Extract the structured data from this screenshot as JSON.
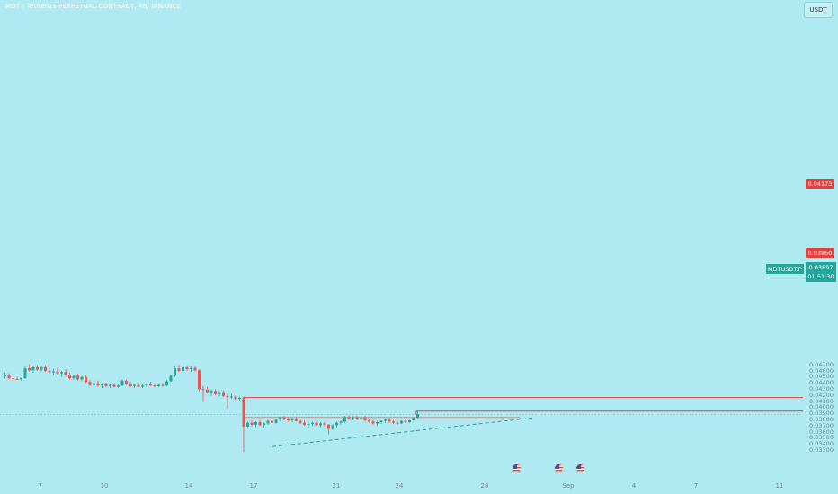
{
  "header": {
    "title": "MDT / TetherUS PERPETUAL CONTRACT, 4h, BINANCE"
  },
  "currency_button": "USDT",
  "price_labels": {
    "upper": "0.04173",
    "mid": "0.03950"
  },
  "current": {
    "symbol": "MDTUSDT.P",
    "price": "0.03897",
    "countdown": "01:51:30"
  },
  "colors": {
    "background": "#afe9f1",
    "up": "#26a69a",
    "down": "#ef5350",
    "resistance_line": "#e0433f",
    "zone": "#c8c8c8",
    "trendline": "#2aa198"
  },
  "events": [
    "us-flag-icon",
    "us-flag-icon",
    "us-flag-icon"
  ],
  "chart_data": {
    "type": "candlestick",
    "title": "MDT / TetherUS PERPETUAL CONTRACT, 4h, BINANCE",
    "ylim": [
      0.0328,
      0.0472
    ],
    "yticks": [
      "0.04700",
      "0.04600",
      "0.04500",
      "0.04400",
      "0.04300",
      "0.04200",
      "0.04100",
      "0.04000",
      "0.03900",
      "0.03800",
      "0.03700",
      "0.03600",
      "0.03500",
      "0.03400",
      "0.03300"
    ],
    "xticks": [
      "7",
      "10",
      "14",
      "17",
      "21",
      "24",
      "28",
      "Sep",
      "4",
      "7",
      "11"
    ],
    "candles": [
      [
        0.0452,
        0.0458,
        0.0449,
        0.0455
      ],
      [
        0.0455,
        0.0457,
        0.0447,
        0.0449
      ],
      [
        0.0449,
        0.0452,
        0.0446,
        0.0448
      ],
      [
        0.0448,
        0.0451,
        0.0446,
        0.0447
      ],
      [
        0.0447,
        0.045,
        0.0445,
        0.0449
      ],
      [
        0.0449,
        0.0468,
        0.0448,
        0.0465
      ],
      [
        0.0465,
        0.0472,
        0.046,
        0.0462
      ],
      [
        0.0462,
        0.0469,
        0.0458,
        0.0467
      ],
      [
        0.0467,
        0.047,
        0.0461,
        0.0463
      ],
      [
        0.0463,
        0.0469,
        0.046,
        0.0467
      ],
      [
        0.0467,
        0.047,
        0.0459,
        0.0461
      ],
      [
        0.0461,
        0.0466,
        0.0457,
        0.0459
      ],
      [
        0.0459,
        0.0464,
        0.0454,
        0.046
      ],
      [
        0.046,
        0.0466,
        0.0455,
        0.0457
      ],
      [
        0.0457,
        0.0461,
        0.0451,
        0.0459
      ],
      [
        0.0459,
        0.0463,
        0.0453,
        0.0455
      ],
      [
        0.0455,
        0.0458,
        0.0447,
        0.0449
      ],
      [
        0.0449,
        0.0455,
        0.0446,
        0.0453
      ],
      [
        0.0453,
        0.0456,
        0.0445,
        0.0447
      ],
      [
        0.0447,
        0.0453,
        0.0444,
        0.0451
      ],
      [
        0.0451,
        0.0454,
        0.0441,
        0.0443
      ],
      [
        0.0443,
        0.0446,
        0.0436,
        0.0438
      ],
      [
        0.0438,
        0.0443,
        0.0434,
        0.0441
      ],
      [
        0.0441,
        0.0445,
        0.0435,
        0.0437
      ],
      [
        0.0437,
        0.0441,
        0.0433,
        0.0439
      ],
      [
        0.0439,
        0.0442,
        0.0434,
        0.0436
      ],
      [
        0.0436,
        0.044,
        0.0433,
        0.0438
      ],
      [
        0.0438,
        0.0441,
        0.0434,
        0.0435
      ],
      [
        0.0435,
        0.0439,
        0.0433,
        0.0437
      ],
      [
        0.0437,
        0.0447,
        0.0436,
        0.0445
      ],
      [
        0.0445,
        0.0447,
        0.0437,
        0.0439
      ],
      [
        0.0439,
        0.0443,
        0.0434,
        0.0436
      ],
      [
        0.0436,
        0.044,
        0.0433,
        0.0438
      ],
      [
        0.0438,
        0.0441,
        0.0434,
        0.0435
      ],
      [
        0.0435,
        0.044,
        0.0433,
        0.0437
      ],
      [
        0.0437,
        0.0441,
        0.0435,
        0.044
      ],
      [
        0.044,
        0.0443,
        0.0436,
        0.0437
      ],
      [
        0.0437,
        0.0441,
        0.0434,
        0.0436
      ],
      [
        0.0436,
        0.044,
        0.0434,
        0.0438
      ],
      [
        0.0438,
        0.0441,
        0.0435,
        0.0437
      ],
      [
        0.0437,
        0.0446,
        0.0436,
        0.0444
      ],
      [
        0.0444,
        0.0455,
        0.0443,
        0.0453
      ],
      [
        0.0453,
        0.0468,
        0.0451,
        0.0465
      ],
      [
        0.0465,
        0.0471,
        0.0459,
        0.0461
      ],
      [
        0.0461,
        0.0469,
        0.0458,
        0.0467
      ],
      [
        0.0467,
        0.0469,
        0.0461,
        0.0464
      ],
      [
        0.0464,
        0.0468,
        0.0459,
        0.0466
      ],
      [
        0.0466,
        0.0469,
        0.046,
        0.0462
      ],
      [
        0.0462,
        0.0463,
        0.0428,
        0.0431
      ],
      [
        0.0431,
        0.0436,
        0.041,
        0.043
      ],
      [
        0.043,
        0.0435,
        0.0424,
        0.0426
      ],
      [
        0.0426,
        0.0431,
        0.042,
        0.0428
      ],
      [
        0.0428,
        0.0431,
        0.0421,
        0.0423
      ],
      [
        0.0423,
        0.0428,
        0.0419,
        0.0426
      ],
      [
        0.0426,
        0.0429,
        0.0418,
        0.042
      ],
      [
        0.042,
        0.0424,
        0.04,
        0.0418
      ],
      [
        0.0418,
        0.0423,
        0.0415,
        0.0419
      ],
      [
        0.0419,
        0.0421,
        0.0413,
        0.0415
      ],
      [
        0.0415,
        0.0419,
        0.0411,
        0.0417
      ],
      [
        0.0417,
        0.0419,
        0.0328,
        0.037
      ],
      [
        0.037,
        0.0378,
        0.0366,
        0.0376
      ],
      [
        0.0376,
        0.038,
        0.037,
        0.0373
      ],
      [
        0.0373,
        0.0379,
        0.0369,
        0.0377
      ],
      [
        0.0377,
        0.038,
        0.0371,
        0.0372
      ],
      [
        0.0372,
        0.0377,
        0.0368,
        0.0375
      ],
      [
        0.0375,
        0.0381,
        0.0373,
        0.0379
      ],
      [
        0.0379,
        0.0382,
        0.0374,
        0.0376
      ],
      [
        0.0376,
        0.0383,
        0.0374,
        0.0381
      ],
      [
        0.0381,
        0.0386,
        0.0379,
        0.0385
      ],
      [
        0.0385,
        0.0387,
        0.038,
        0.0382
      ],
      [
        0.0382,
        0.0385,
        0.0378,
        0.038
      ],
      [
        0.038,
        0.0384,
        0.0377,
        0.0382
      ],
      [
        0.0382,
        0.0385,
        0.0378,
        0.0379
      ],
      [
        0.0379,
        0.0382,
        0.0374,
        0.0376
      ],
      [
        0.0376,
        0.038,
        0.0371,
        0.0373
      ],
      [
        0.0373,
        0.0378,
        0.0367,
        0.0374
      ],
      [
        0.0374,
        0.0378,
        0.0371,
        0.0376
      ],
      [
        0.0376,
        0.0379,
        0.0371,
        0.0372
      ],
      [
        0.0372,
        0.0377,
        0.0369,
        0.0375
      ],
      [
        0.0375,
        0.0378,
        0.037,
        0.0373
      ],
      [
        0.0373,
        0.0374,
        0.0357,
        0.0366
      ],
      [
        0.0366,
        0.0374,
        0.0364,
        0.0372
      ],
      [
        0.0372,
        0.0378,
        0.0369,
        0.0376
      ],
      [
        0.0376,
        0.038,
        0.0373,
        0.0378
      ],
      [
        0.0378,
        0.0387,
        0.0376,
        0.0385
      ],
      [
        0.0385,
        0.0388,
        0.038,
        0.0382
      ],
      [
        0.0382,
        0.0387,
        0.038,
        0.0385
      ],
      [
        0.0385,
        0.0388,
        0.0381,
        0.0383
      ],
      [
        0.0383,
        0.0386,
        0.038,
        0.0385
      ],
      [
        0.0385,
        0.0387,
        0.0378,
        0.038
      ],
      [
        0.038,
        0.0383,
        0.0376,
        0.0378
      ],
      [
        0.0378,
        0.0381,
        0.0373,
        0.0375
      ],
      [
        0.0375,
        0.0379,
        0.0371,
        0.0377
      ],
      [
        0.0377,
        0.0381,
        0.0374,
        0.0379
      ],
      [
        0.0379,
        0.0383,
        0.0376,
        0.0381
      ],
      [
        0.0381,
        0.0384,
        0.0376,
        0.0378
      ],
      [
        0.0378,
        0.0381,
        0.0374,
        0.0376
      ],
      [
        0.0376,
        0.0379,
        0.0373,
        0.0375
      ],
      [
        0.0375,
        0.038,
        0.0374,
        0.0379
      ],
      [
        0.0379,
        0.0382,
        0.0375,
        0.0377
      ],
      [
        0.0377,
        0.0381,
        0.0376,
        0.038
      ],
      [
        0.038,
        0.0386,
        0.0379,
        0.0384
      ],
      [
        0.0384,
        0.0397,
        0.0382,
        0.039
      ]
    ],
    "levels": [
      {
        "name": "resistance-upper",
        "price": 0.04173,
        "label": "0.04173"
      },
      {
        "name": "resistance-mid",
        "price": 0.0395,
        "label": "0.03950"
      },
      {
        "name": "current-price",
        "price": 0.03897,
        "label": "0.03897"
      }
    ],
    "zone": {
      "top": 0.0385,
      "bottom": 0.0382
    },
    "trendline": {
      "from": 0.0337,
      "to": 0.0384,
      "style": "dashed"
    }
  }
}
